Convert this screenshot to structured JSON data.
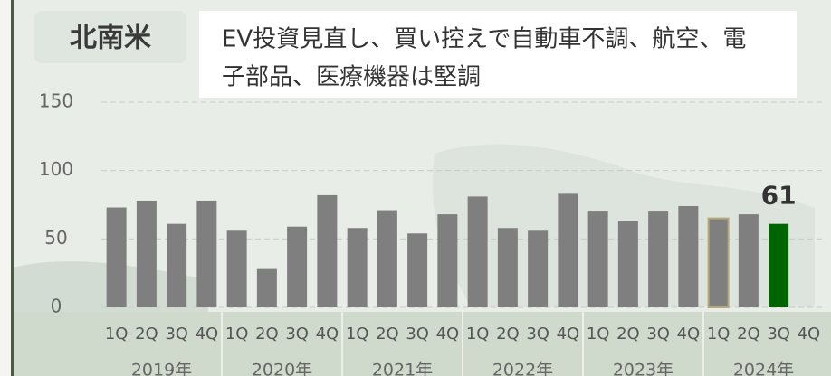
{
  "chart_data": {
    "type": "bar",
    "title": "北南米",
    "subtitle": [
      "EV投資見直し、買い控えで自動車不調、航空、電",
      "子部品、医療機器は堅調"
    ],
    "categories": [
      "1Q",
      "2Q",
      "3Q",
      "4Q",
      "1Q",
      "2Q",
      "3Q",
      "4Q",
      "1Q",
      "2Q",
      "3Q",
      "4Q",
      "1Q",
      "2Q",
      "3Q",
      "4Q",
      "1Q",
      "2Q",
      "3Q",
      "4Q",
      "1Q",
      "2Q",
      "3Q",
      "4Q"
    ],
    "group_labels": [
      "2019年",
      "2020年",
      "2021年",
      "2022年",
      "2023年",
      "2024年"
    ],
    "values": [
      73,
      78,
      61,
      78,
      56,
      28,
      59,
      82,
      58,
      71,
      54,
      68,
      81,
      58,
      56,
      83,
      70,
      63,
      70,
      74,
      65,
      68,
      61,
      null
    ],
    "value_labels": [
      null,
      null,
      null,
      null,
      null,
      null,
      null,
      null,
      null,
      null,
      null,
      null,
      null,
      null,
      null,
      null,
      null,
      null,
      null,
      null,
      null,
      null,
      "61",
      null
    ],
    "colors": [
      "#7f7f7f",
      "#7f7f7f",
      "#7f7f7f",
      "#7f7f7f",
      "#7f7f7f",
      "#7f7f7f",
      "#7f7f7f",
      "#7f7f7f",
      "#7f7f7f",
      "#7f7f7f",
      "#7f7f7f",
      "#7f7f7f",
      "#7f7f7f",
      "#7f7f7f",
      "#7f7f7f",
      "#7f7f7f",
      "#7f7f7f",
      "#7f7f7f",
      "#7f7f7f",
      "#7f7f7f",
      "#7f7f7f",
      "#7f7f7f",
      "#006400",
      "#7f7f7f"
    ],
    "edgecolors": [
      null,
      null,
      null,
      null,
      null,
      null,
      null,
      null,
      null,
      null,
      null,
      null,
      null,
      null,
      null,
      null,
      null,
      null,
      null,
      null,
      "#b8a878",
      null,
      null,
      null
    ],
    "ylim": [
      0,
      150
    ],
    "yticks": [
      0,
      50,
      100,
      150
    ],
    "grid": true
  }
}
